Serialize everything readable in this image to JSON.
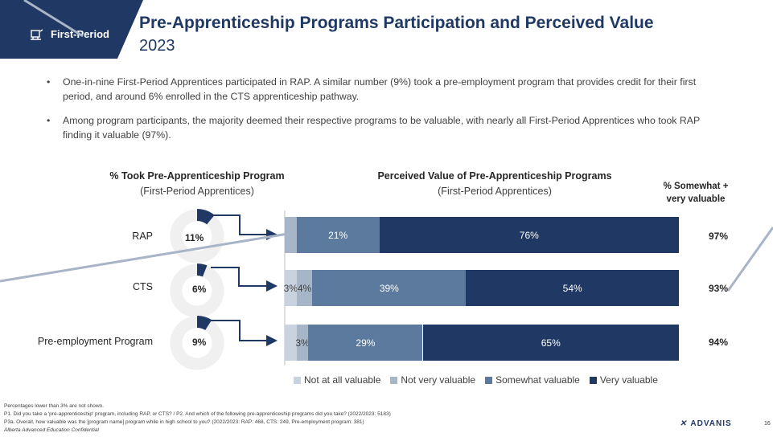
{
  "header": {
    "tag": "First-Period",
    "title": "Pre-Apprenticeship Programs Participation and Perceived Value",
    "year": "2023"
  },
  "bullets": [
    "One-in-nine First-Period Apprentices participated in RAP. A similar number (9%) took a pre-employment program that provides credit for their first period, and around 6% enrolled in the CTS apprenticeship pathway.",
    "Among program participants, the majority deemed their respective programs to be valuable, with nearly all First-Period Apprentices who took RAP finding it valuable (97%)."
  ],
  "left_header": {
    "title": "% Took Pre-Apprenticeship Program",
    "sub": "(First-Period Apprentices)"
  },
  "right_header": {
    "title": "Perceived Value of Pre-Apprenticeship Programs",
    "sub": "(First-Period Apprentices)"
  },
  "sv_header": {
    "line1": "% Somewhat +",
    "line2": "very valuable"
  },
  "colors": {
    "not_at_all": "#c9d3e0",
    "not_very": "#a7b5c8",
    "somewhat": "#5b7a9e",
    "very": "#1f3864",
    "brand": "#1f3864"
  },
  "chart_data": [
    {
      "type": "pie",
      "title": "% Took Pre-Apprenticeship Program",
      "subtitle": "(First-Period Apprentices)",
      "categories": [
        "RAP",
        "CTS",
        "Pre-employment Program"
      ],
      "values": [
        11,
        6,
        9
      ],
      "labels": [
        "11%",
        "6%",
        "9%"
      ]
    },
    {
      "type": "bar",
      "orientation": "horizontal-stacked",
      "title": "Perceived Value of Pre-Apprenticeship Programs",
      "subtitle": "(First-Period Apprentices)",
      "categories": [
        "RAP",
        "CTS",
        "Pre-employment Program"
      ],
      "series": [
        {
          "name": "Not at all valuable",
          "values": [
            0,
            3,
            0
          ],
          "labels": [
            "",
            "3%",
            ""
          ]
        },
        {
          "name": "Not very valuable",
          "values": [
            3,
            4,
            3
          ],
          "labels": [
            "",
            "4%",
            "3%"
          ]
        },
        {
          "name": "Somewhat valuable",
          "values": [
            21,
            39,
            29
          ],
          "labels": [
            "21%",
            "39%",
            "29%"
          ]
        },
        {
          "name": "Very valuable",
          "values": [
            76,
            54,
            65
          ],
          "labels": [
            "76%",
            "54%",
            "65%"
          ]
        }
      ],
      "somewhat_very": [
        "97%",
        "93%",
        "94%"
      ],
      "legend": "bottom"
    }
  ],
  "footnotes": [
    "Percentages lower than 3% are not shown.",
    "P1. Did you take a 'pre-apprenticeship' program, including RAP, or CTS? / P2. And which of the following pre-apprenticeship programs did you take? (2022/2023: 5183)",
    "P3a. Overall, how valuable was the [program name] program while in high school to you? (2022/2023: RAP: 468, CTS: 249, Pre-employment program: 381)",
    "Alberta Advanced Education Confidential"
  ],
  "logo": "ADVANIS",
  "page_number": "16"
}
